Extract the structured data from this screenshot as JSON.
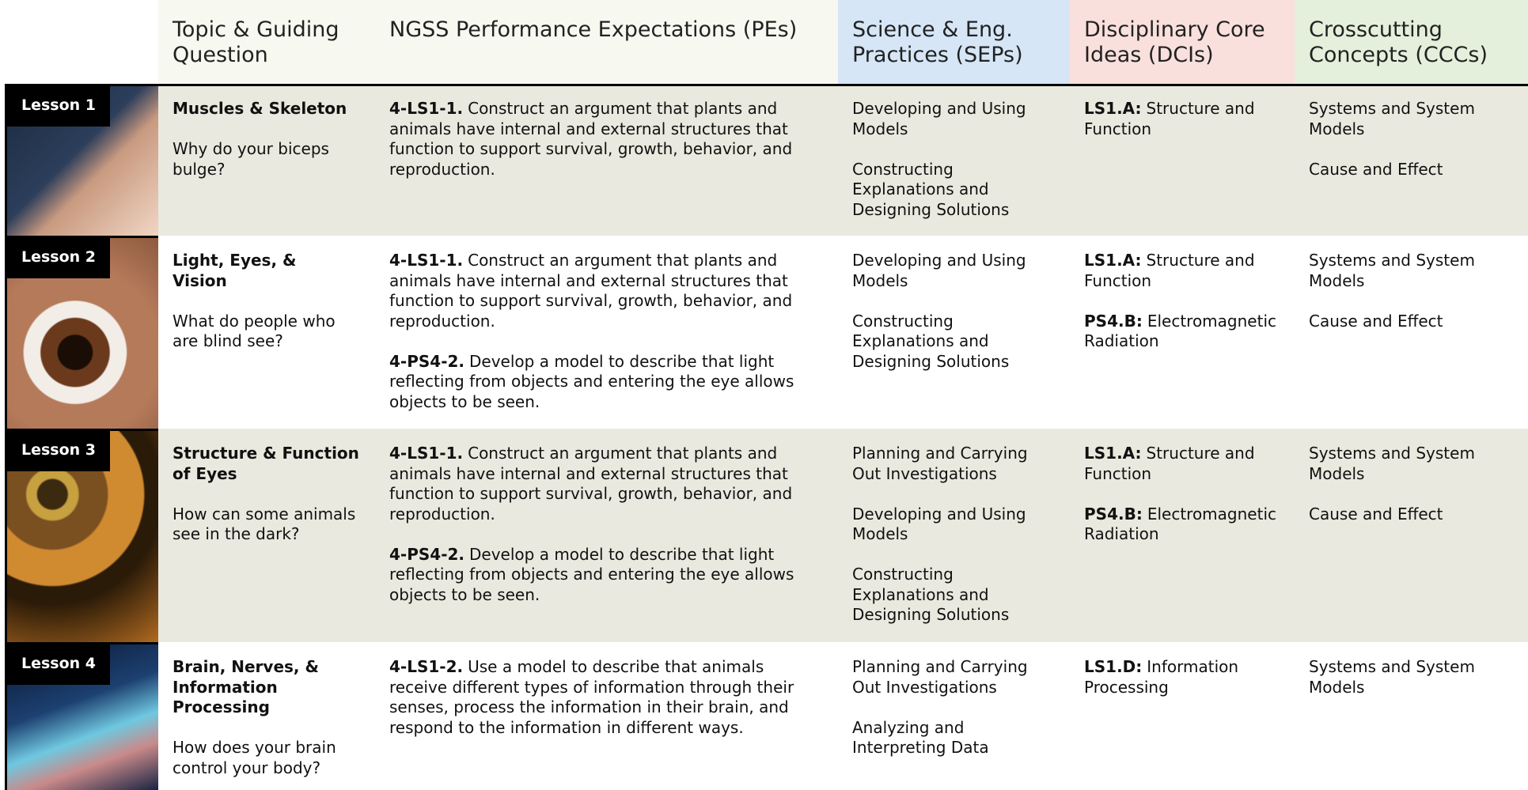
{
  "header": {
    "columns": [
      "Topic & Guiding Question",
      "NGSS Performance Expectations (PEs)",
      "Science & Eng. Practices (SEPs)",
      "Disciplinary Core Ideas (DCIs)",
      "Crosscutting Concepts (CCCs)"
    ]
  },
  "rows": [
    {
      "lesson": "Lesson 1",
      "topic": "Muscles & Skeleton",
      "question": "Why do your biceps bulge?",
      "pes": [
        {
          "code": "4-LS1-1.",
          "text": "Construct an argument that plants and animals have internal and external structures that function to support survival, growth, behavior, and reproduction."
        }
      ],
      "seps": [
        "Developing and Using Models",
        "Constructing Explanations and Designing Solutions"
      ],
      "dcis": [
        {
          "code": "LS1.A:",
          "text": "Structure and Function"
        }
      ],
      "cccs": [
        "Systems and System Models",
        "Cause and Effect"
      ]
    },
    {
      "lesson": "Lesson 2",
      "topic": "Light, Eyes, & Vision",
      "question": "What do people who are blind see?",
      "pes": [
        {
          "code": "4-LS1-1.",
          "text": "Construct an argument that plants and animals have internal and external structures that function to support survival, growth, behavior, and reproduction."
        },
        {
          "code": "4-PS4-2.",
          "text": "Develop a model to describe that light reflecting from objects and entering the eye allows objects to be seen."
        }
      ],
      "seps": [
        "Developing and Using Models",
        "Constructing Explanations and Designing Solutions"
      ],
      "dcis": [
        {
          "code": "LS1.A:",
          "text": "Structure and Function"
        },
        {
          "code": "PS4.B:",
          "text": "Electromagnetic Radiation"
        }
      ],
      "cccs": [
        "Systems and System Models",
        "Cause and Effect"
      ]
    },
    {
      "lesson": "Lesson 3",
      "topic": "Structure & Function of Eyes",
      "question": "How can some animals see in the dark?",
      "pes": [
        {
          "code": "4-LS1-1.",
          "text": "Construct an argument that plants and animals have internal and external structures that function to support survival, growth, behavior, and reproduction."
        },
        {
          "code": "4-PS4-2.",
          "text": "Develop a model to describe that light reflecting from objects and entering the eye allows objects to be seen."
        }
      ],
      "seps": [
        "Planning and Carrying Out Investigations",
        "Developing and Using Models",
        "Constructing Explanations and Designing Solutions"
      ],
      "dcis": [
        {
          "code": "LS1.A:",
          "text": "Structure and Function"
        },
        {
          "code": "PS4.B:",
          "text": "Electromagnetic Radiation"
        }
      ],
      "cccs": [
        "Systems and System Models",
        "Cause and Effect"
      ]
    },
    {
      "lesson": "Lesson 4",
      "topic": "Brain, Nerves, & Information Processing",
      "question": "How does your brain control your body?",
      "pes": [
        {
          "code": "4-LS1-2.",
          "text": "Use a model to describe that animals receive different types of information through their senses, process the information in their brain, and respond to the information in different ways."
        }
      ],
      "seps": [
        "Planning and Carrying Out Investigations",
        "Analyzing and Interpreting Data"
      ],
      "dcis": [
        {
          "code": "LS1.D:",
          "text": "Information Processing"
        }
      ],
      "cccs": [
        "Systems and System Models"
      ]
    }
  ]
}
